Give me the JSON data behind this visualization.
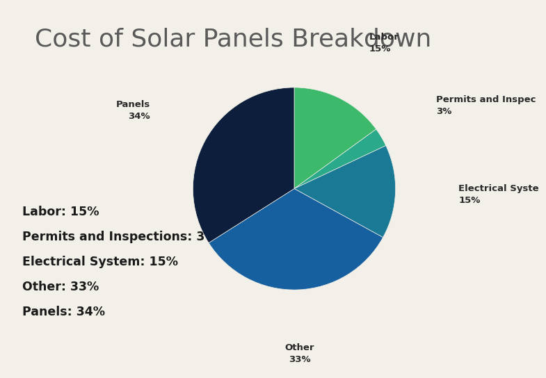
{
  "title": "Cost of Solar Panels Breakdown",
  "title_fontsize": 26,
  "title_color": "#5a5a5a",
  "background_color": "#f2f0e8",
  "slices": [
    {
      "label": "Labor",
      "pct": 15,
      "color": "#3cb96a",
      "label_display": "Labor\n15%"
    },
    {
      "label": "Permits and Inspections",
      "pct": 3,
      "color": "#2aaa8a",
      "label_display": "Permits and Inspec\n3%"
    },
    {
      "label": "Electrical System",
      "pct": 15,
      "color": "#1a7a95",
      "label_display": "Electrical Syste\n15%"
    },
    {
      "label": "Other",
      "pct": 33,
      "color": "#1660a0",
      "label_display": "Other\n33%"
    },
    {
      "label": "Panels",
      "pct": 34,
      "color": "#0c1e3c",
      "label_display": "Panels\n34%"
    }
  ],
  "legend_items": [
    "Labor: 15%",
    "Permits and Inspections: 3%",
    "Electrical System: 15%",
    "Other: 33%",
    "Panels: 34%"
  ],
  "legend_fontsize": 12.5,
  "legend_color": "#1a1a1a",
  "startangle": 90,
  "label_fontsize": 9.5,
  "label_color": "#2a2a2a"
}
